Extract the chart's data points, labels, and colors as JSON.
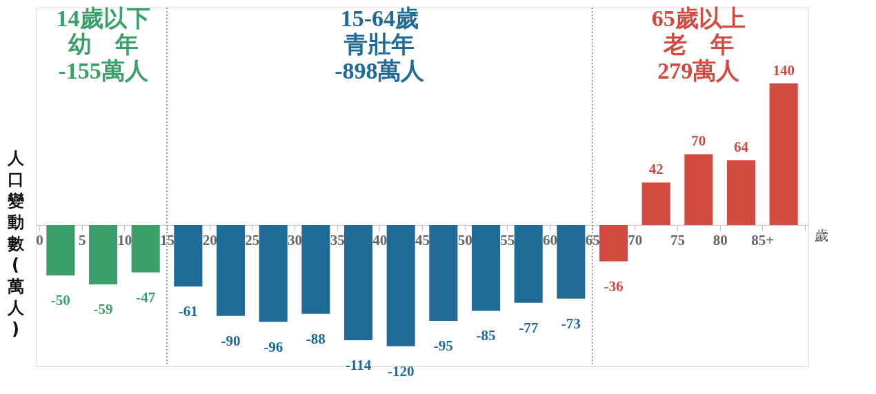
{
  "chart_data": {
    "type": "bar",
    "ylabel": "人口變動數(萬人)",
    "xlabel": "歲",
    "x": [
      2.5,
      7.5,
      12.5,
      17.5,
      22.5,
      27.5,
      32.5,
      37.5,
      42.5,
      47.5,
      52.5,
      57.5,
      62.5,
      67.5,
      72.5,
      77.5,
      82.5,
      87.5
    ],
    "values": [
      -50,
      -59,
      -47,
      -61,
      -90,
      -96,
      -88,
      -114,
      -120,
      -95,
      -85,
      -77,
      -73,
      -36,
      42,
      70,
      64,
      140
    ],
    "colors": [
      "#3a9f69",
      "#3a9f69",
      "#3a9f69",
      "#1f6a96",
      "#1f6a96",
      "#1f6a96",
      "#1f6a96",
      "#1f6a96",
      "#1f6a96",
      "#1f6a96",
      "#1f6a96",
      "#1f6a96",
      "#1f6a96",
      "#d24a40",
      "#d24a40",
      "#d24a40",
      "#d24a40",
      "#d24a40"
    ],
    "data_labels": true,
    "xlim": [
      0,
      90
    ],
    "ylim": [
      -140,
      215
    ],
    "xticks": [
      0,
      5,
      10,
      15,
      20,
      25,
      30,
      35,
      40,
      45,
      50,
      55,
      60,
      65,
      70,
      75,
      80,
      {
        "value": 85,
        "label": "85+"
      },
      {
        "value": 90,
        "label": null
      }
    ],
    "tick_labels": "x",
    "grid": false,
    "ref_lines": [
      {
        "axis": "x",
        "value": 15,
        "line_style": "dotted",
        "color": "#777777"
      },
      {
        "axis": "x",
        "value": 65,
        "line_style": "dotted",
        "color": "#777777"
      }
    ],
    "annotations": [
      "14歲以下",
      "幼　年",
      "-155萬人",
      "15-64歲",
      "青壯年",
      "-898萬人",
      "65歲以上",
      "老　年",
      "279萬人"
    ]
  }
}
